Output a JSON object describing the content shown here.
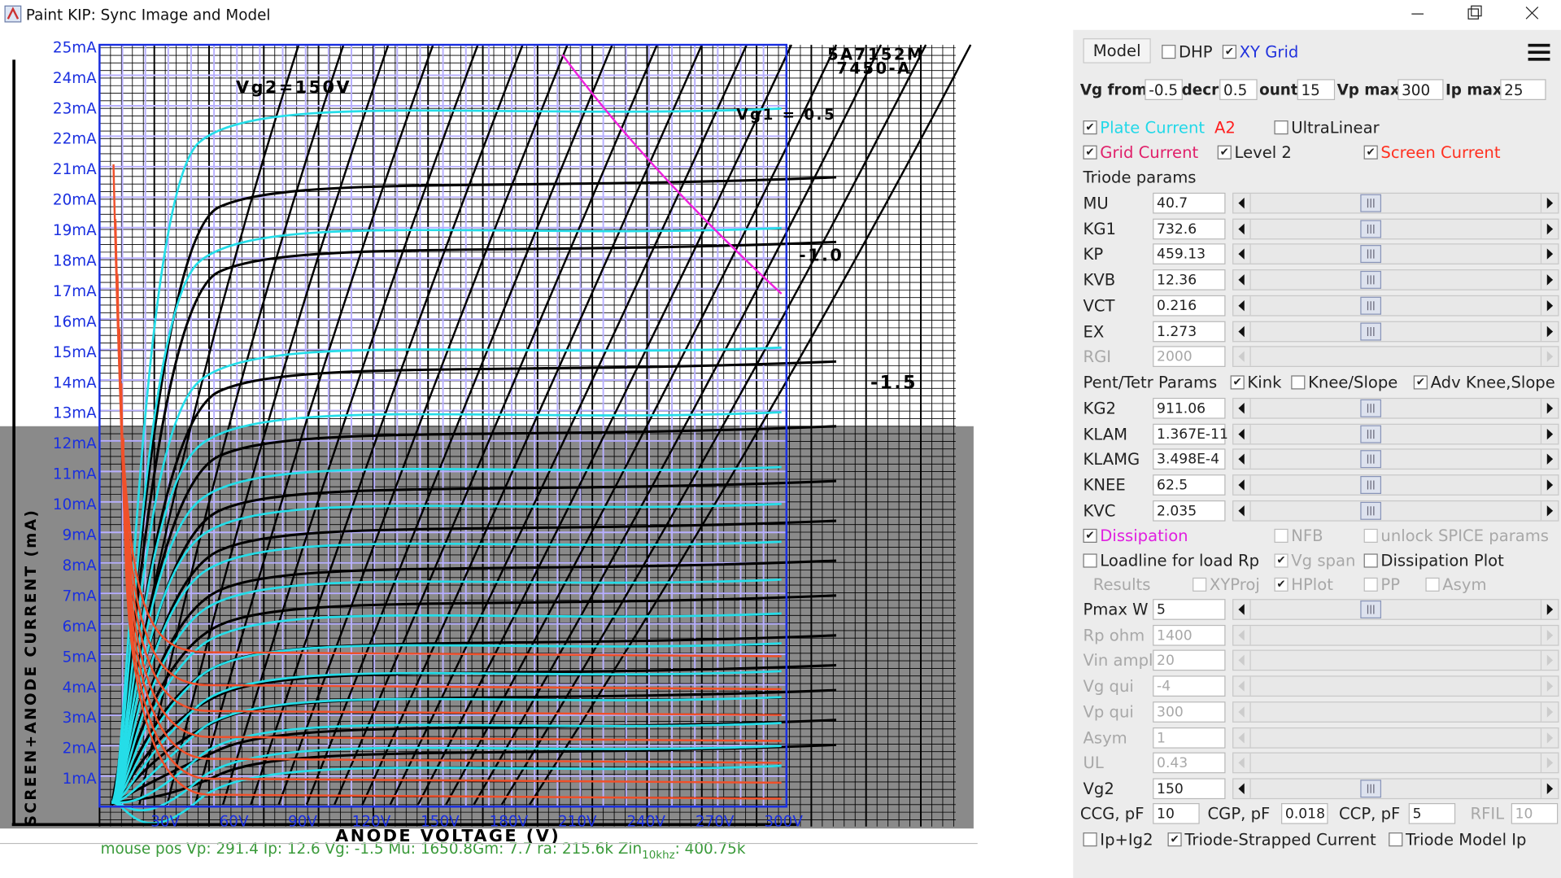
{
  "window": {
    "title": "Paint KIP: Sync Image and Model"
  },
  "plot": {
    "y_labels": [
      "1mA",
      "2mA",
      "3mA",
      "4mA",
      "5mA",
      "6mA",
      "7mA",
      "8mA",
      "9mA",
      "10mA",
      "11mA",
      "12mA",
      "13mA",
      "14mA",
      "15mA",
      "16mA",
      "17mA",
      "18mA",
      "19mA",
      "20mA",
      "21mA",
      "22mA",
      "23mA",
      "24mA",
      "25mA"
    ],
    "x_labels": [
      "30V",
      "60V",
      "90V",
      "120V",
      "150V",
      "180V",
      "210V",
      "240V",
      "270V",
      "300V"
    ],
    "scan_texts": [
      "5A7152M",
      "7450-A",
      "Vg2=150V",
      "Vg1 = 0.5",
      "-1.0",
      "-1.5",
      "ANODE VOLTAGE (V)",
      "SCREEN+ANODE CURRENT (mA)"
    ],
    "status": {
      "text": "mouse pos Vp: 291.4   Ip: 12.6     Vg: -1.5      Mu: 1650.8Gm: 7.7      ra: 215.6k  Zin",
      "sub": "10khz",
      "tail": ": 400.75k"
    }
  },
  "panel": {
    "model_button": "Model",
    "top_checks": [
      {
        "label": "DHP",
        "checked": false,
        "color": "#222"
      },
      {
        "label": "XY Grid",
        "checked": true,
        "color": "#2233dd"
      }
    ],
    "vg_fields": [
      {
        "label": "Vg from",
        "value": "-0.5"
      },
      {
        "label": "decr",
        "value": "0.5"
      },
      {
        "label": "ount",
        "value": "15"
      },
      {
        "label": "Vp max",
        "value": "300"
      },
      {
        "label": "Ip max",
        "value": "25"
      }
    ],
    "check_row1": [
      {
        "label": "Plate Current",
        "checked": true,
        "color": "#22d8e8"
      },
      {
        "label": "UltraLinear",
        "checked": false,
        "color": "#222"
      }
    ],
    "a2_label": "A2",
    "check_row2": [
      {
        "label": "Grid Current",
        "checked": true,
        "color": "#e0206a"
      },
      {
        "label": "Level 2",
        "checked": true,
        "color": "#222"
      },
      {
        "label": "Screen Current",
        "checked": true,
        "color": "#ff3020"
      }
    ],
    "triode_heading": "Triode params",
    "triode_params": [
      {
        "label": "MU",
        "value": "40.7",
        "enabled": true
      },
      {
        "label": "KG1",
        "value": "732.6",
        "enabled": true
      },
      {
        "label": "KP",
        "value": "459.13",
        "enabled": true
      },
      {
        "label": "KVB",
        "value": "12.36",
        "enabled": true
      },
      {
        "label": "VCT",
        "value": "0.216",
        "enabled": true
      },
      {
        "label": "EX",
        "value": "1.273",
        "enabled": true
      },
      {
        "label": "RGI",
        "value": "2000",
        "enabled": false
      }
    ],
    "pent_heading": "Pent/Tetr Params",
    "pent_checks": [
      {
        "label": "Kink",
        "checked": true,
        "color": "#222"
      },
      {
        "label": "Knee/Slope",
        "checked": false,
        "color": "#222"
      },
      {
        "label": "Adv Knee,Slope",
        "checked": true,
        "color": "#222"
      }
    ],
    "pent_params": [
      {
        "label": "KG2",
        "value": "911.06",
        "enabled": true
      },
      {
        "label": "KLAM",
        "value": "1.367E-11",
        "enabled": true
      },
      {
        "label": "KLAMG",
        "value": "3.498E-4",
        "enabled": true
      },
      {
        "label": "KNEE",
        "value": "62.5",
        "enabled": true
      },
      {
        "label": "KVC",
        "value": "2.035",
        "enabled": true
      }
    ],
    "check_row3": [
      {
        "label": "Dissipation",
        "checked": true,
        "color": "#e020e0",
        "enabled": true
      },
      {
        "label": "NFB",
        "checked": false,
        "color": "#222",
        "enabled": false
      },
      {
        "label": "unlock SPICE params",
        "checked": false,
        "color": "#222",
        "enabled": false
      }
    ],
    "check_row4": [
      {
        "label": "Loadline for load Rp",
        "checked": false,
        "color": "#222",
        "enabled": true
      },
      {
        "label": "Vg span",
        "checked": true,
        "color": "#222",
        "enabled": false
      },
      {
        "label": "Dissipation Plot",
        "checked": false,
        "color": "#222",
        "enabled": true
      }
    ],
    "results_label": "Results",
    "check_row5": [
      {
        "label": "XYProj",
        "checked": false,
        "color": "#222",
        "enabled": false
      },
      {
        "label": "HPlot",
        "checked": true,
        "color": "#222",
        "enabled": false
      },
      {
        "label": "PP",
        "checked": false,
        "color": "#222",
        "enabled": false
      },
      {
        "label": "Asym",
        "checked": false,
        "color": "#222",
        "enabled": false
      }
    ],
    "load_params": [
      {
        "label": "Pmax W",
        "value": "5",
        "enabled": true
      },
      {
        "label": "Rp ohm",
        "value": "1400",
        "enabled": false
      },
      {
        "label": "Vin ampl",
        "value": "20",
        "enabled": false
      },
      {
        "label": "Vg qui",
        "value": "-4",
        "enabled": false
      },
      {
        "label": "Vp qui",
        "value": "300",
        "enabled": false
      },
      {
        "label": "Asym",
        "value": "1",
        "enabled": false
      },
      {
        "label": "UL",
        "value": "0.43",
        "enabled": false
      },
      {
        "label": "Vg2",
        "value": "150",
        "enabled": true
      }
    ],
    "cap_fields": [
      {
        "label": "CCG, pF",
        "value": "10",
        "enabled": true
      },
      {
        "label": "CGP, pF",
        "value": "0.018",
        "enabled": true
      },
      {
        "label": "CCP, pF",
        "value": "5",
        "enabled": true
      },
      {
        "label": "RFIL",
        "value": "10",
        "enabled": false
      }
    ],
    "bottom_checks": [
      {
        "label": "Ip+Ig2",
        "checked": false,
        "color": "#222",
        "enabled": true
      },
      {
        "label": "Triode-Strapped Current",
        "checked": true,
        "color": "#222",
        "enabled": true
      },
      {
        "label": "Triode Model Ip",
        "checked": false,
        "color": "#222",
        "enabled": true
      }
    ]
  }
}
